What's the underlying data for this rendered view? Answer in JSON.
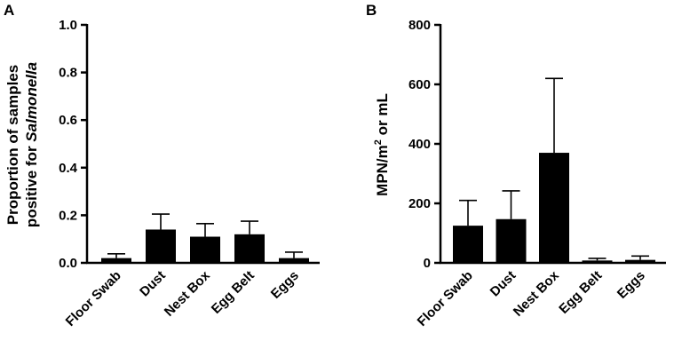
{
  "chart_data": [
    {
      "panel": "A",
      "type": "bar",
      "categories": [
        "Floor Swab",
        "Dust",
        "Nest Box",
        "Egg Belt",
        "Eggs"
      ],
      "values": [
        0.02,
        0.14,
        0.11,
        0.12,
        0.02
      ],
      "errors": [
        0.018,
        0.065,
        0.055,
        0.055,
        0.025
      ],
      "ylabel_line1": "Proportion of samples",
      "ylabel_line2_prefix": "positive for ",
      "ylabel_line2_italic": "Salmonella",
      "ylim": [
        0,
        1.0
      ],
      "yticks": [
        0.0,
        0.2,
        0.4,
        0.6,
        0.8,
        1.0
      ],
      "ytick_labels": [
        "0.0",
        "0.2",
        "0.4",
        "0.6",
        "0.8",
        "1.0"
      ],
      "grid": false
    },
    {
      "panel": "B",
      "type": "bar",
      "categories": [
        "Floor Swab",
        "Dust",
        "Nest Box",
        "Egg Belt",
        "Eggs"
      ],
      "values": [
        125,
        147,
        370,
        8,
        10
      ],
      "errors": [
        85,
        95,
        250,
        7,
        13
      ],
      "ylabel_main": "MPN/m",
      "ylabel_sup": "2",
      "ylabel_suffix": " or mL",
      "ylim": [
        0,
        800
      ],
      "yticks": [
        0,
        200,
        400,
        600,
        800
      ],
      "ytick_labels": [
        "0",
        "200",
        "400",
        "600",
        "800"
      ],
      "grid": false
    }
  ]
}
